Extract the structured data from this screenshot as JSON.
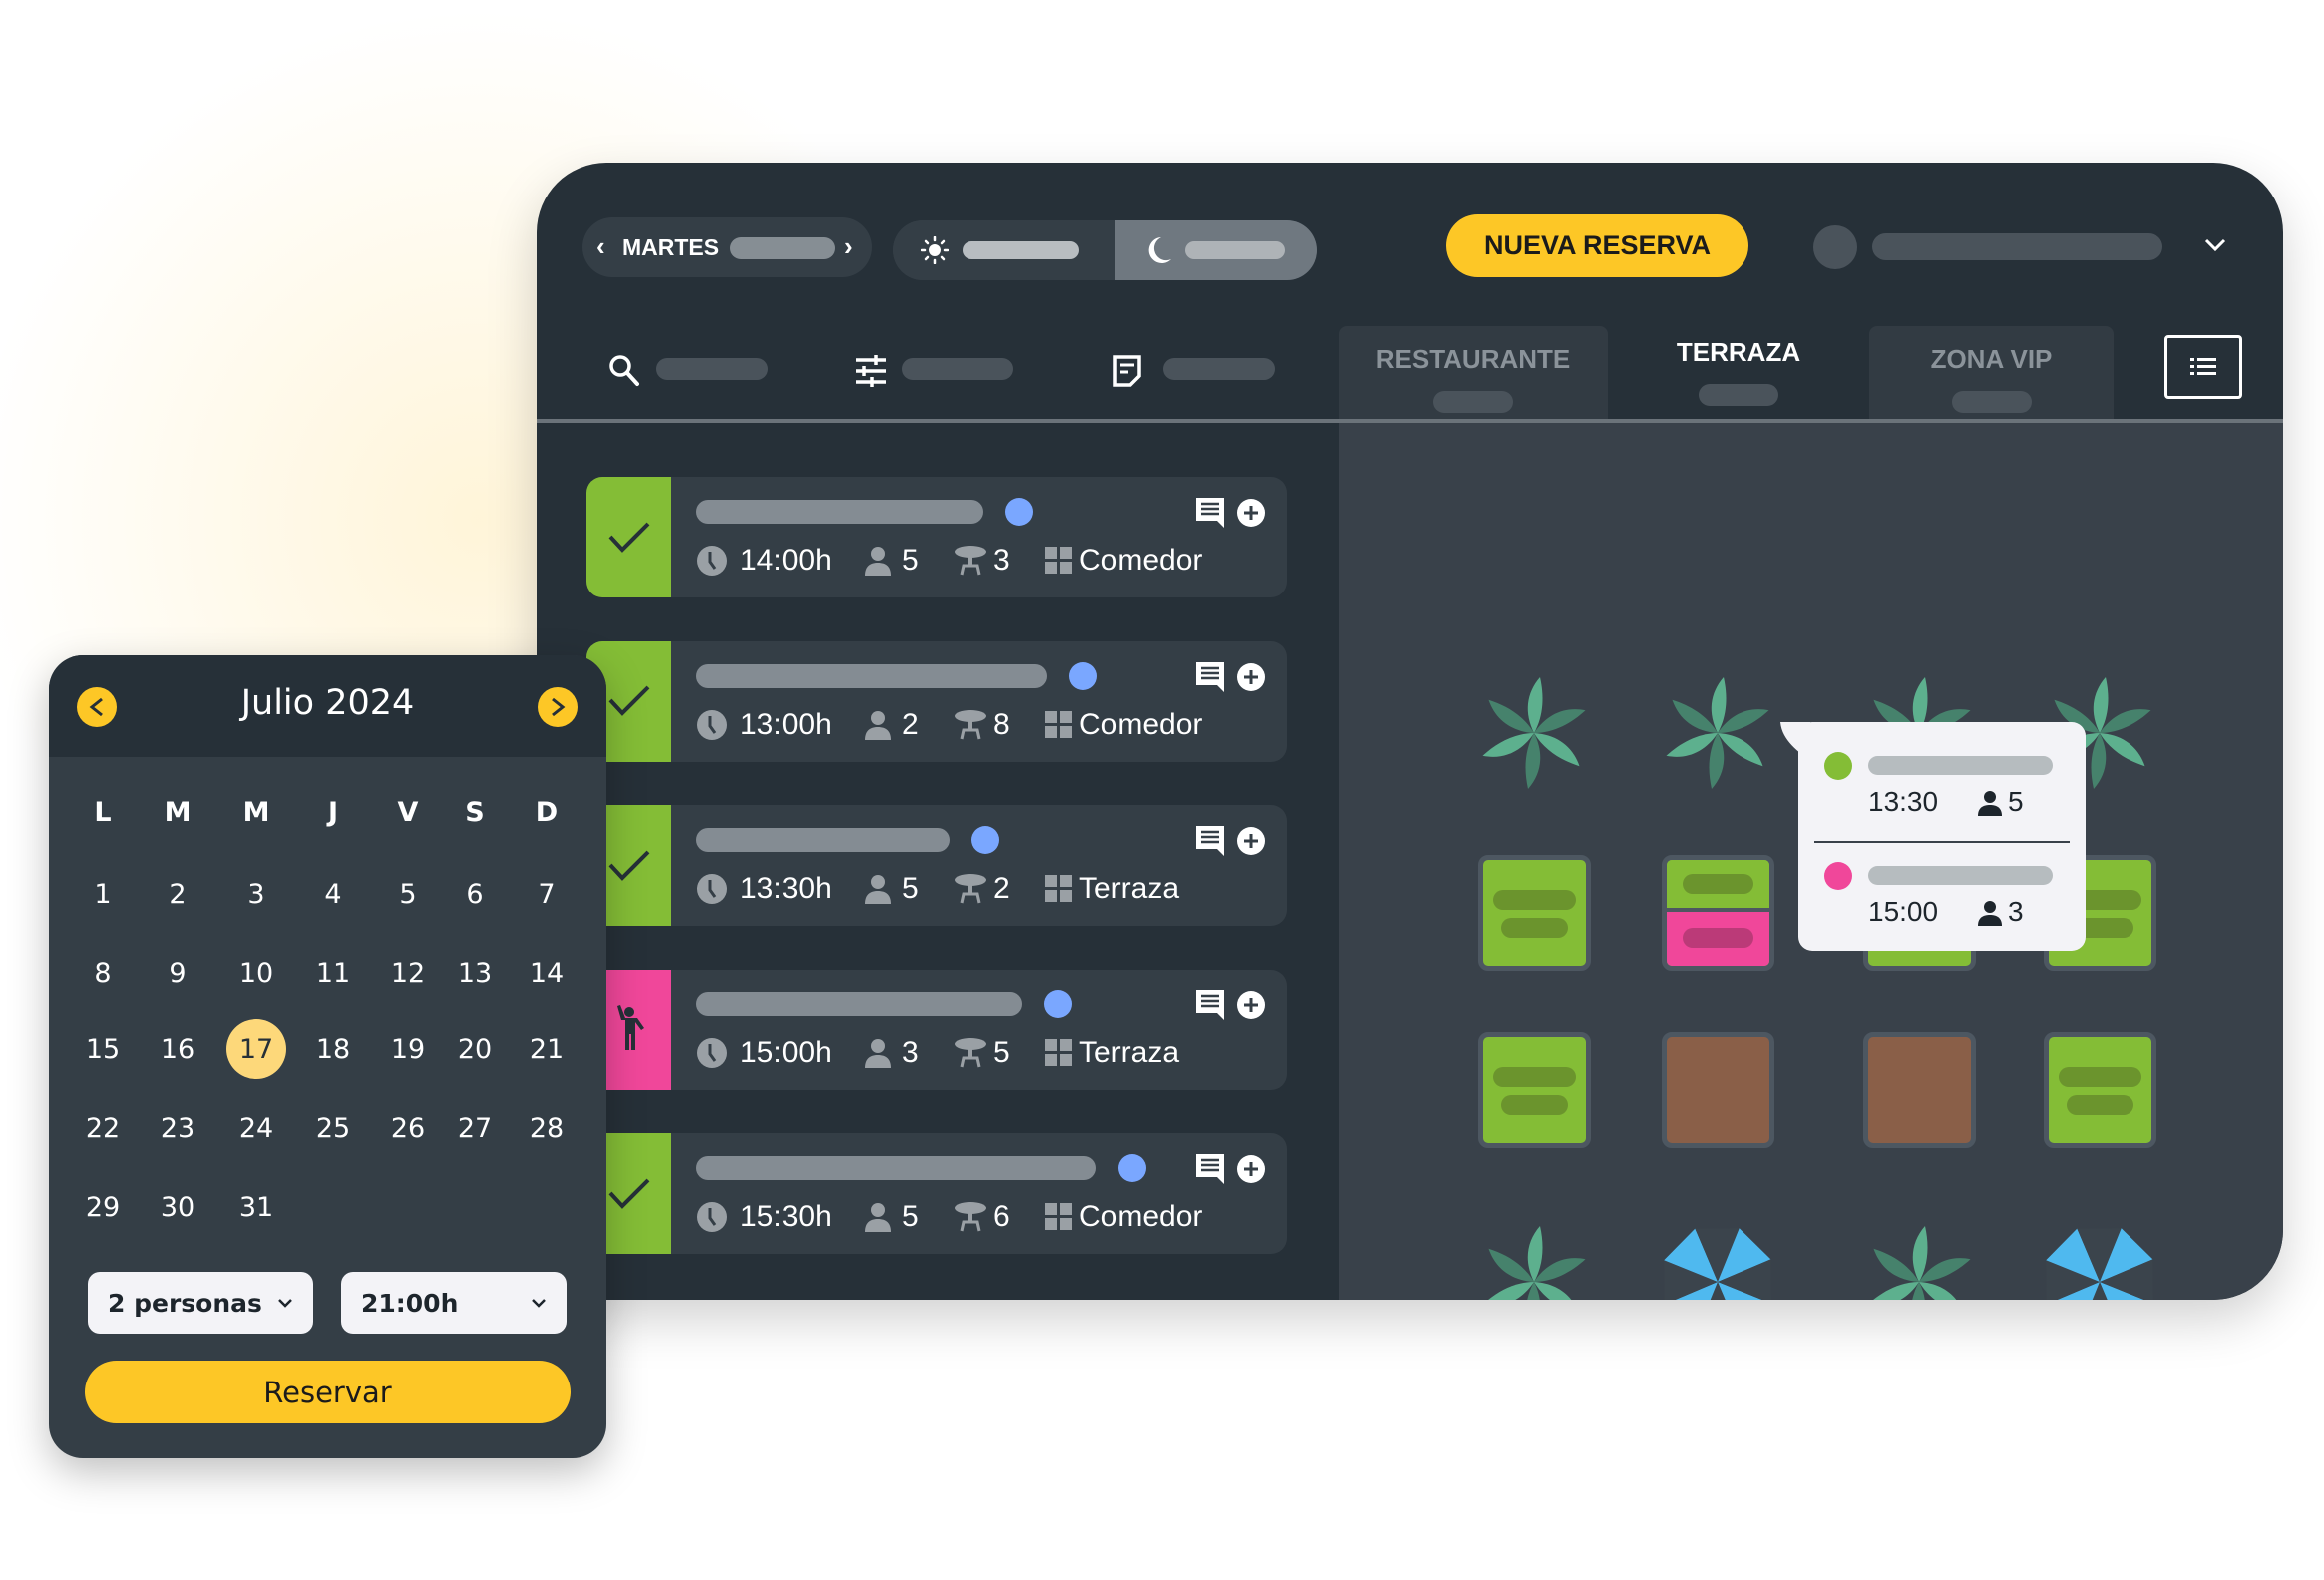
{
  "header": {
    "day_label": "MARTES",
    "new_reservation_label": "NUEVA RESERVA",
    "tabs": [
      {
        "label": "RESTAURANTE",
        "active": false
      },
      {
        "label": "TERRAZA",
        "active": true
      },
      {
        "label": "ZONA VIP",
        "active": false
      }
    ],
    "toolbar_icons": [
      "search-icon",
      "sliders-icon",
      "note-icon"
    ],
    "active_shift": "night"
  },
  "reservations": [
    {
      "status": "confirmed",
      "time": "14:00h",
      "people": "5",
      "table": "3",
      "zone": "Comedor"
    },
    {
      "status": "confirmed",
      "time": "13:00h",
      "people": "2",
      "table": "8",
      "zone": "Comedor"
    },
    {
      "status": "confirmed",
      "time": "13:30h",
      "people": "5",
      "table": "2",
      "zone": "Terraza"
    },
    {
      "status": "seated",
      "time": "15:00h",
      "people": "3",
      "table": "5",
      "zone": "Terraza"
    },
    {
      "status": "confirmed",
      "time": "15:30h",
      "people": "5",
      "table": "6",
      "zone": "Comedor"
    }
  ],
  "tooltip": {
    "entries": [
      {
        "color": "#84bd36",
        "time": "13:30",
        "people": "5"
      },
      {
        "color": "#f0479a",
        "time": "15:00",
        "people": "3"
      }
    ]
  },
  "calendar": {
    "title": "Julio 2024",
    "weekdays": [
      "L",
      "M",
      "M",
      "J",
      "V",
      "S",
      "D"
    ],
    "days": [
      "1",
      "2",
      "3",
      "4",
      "5",
      "6",
      "7",
      "8",
      "9",
      "10",
      "11",
      "12",
      "13",
      "14",
      "15",
      "16",
      "17",
      "18",
      "19",
      "20",
      "21",
      "22",
      "23",
      "24",
      "25",
      "26",
      "27",
      "28",
      "29",
      "30",
      "31"
    ],
    "selected_day": "17",
    "people_select": "2 personas",
    "time_select": "21:00h",
    "reserve_label": "Reservar"
  },
  "colors": {
    "accent": "#fdc726",
    "confirmed": "#84bd36",
    "seated": "#f0479a",
    "occupied": "#8a5f48",
    "dot": "#7aa7ff",
    "umbrella": "#4fb9ef",
    "plant_light": "#5db08e",
    "plant_dark": "#46826c"
  }
}
